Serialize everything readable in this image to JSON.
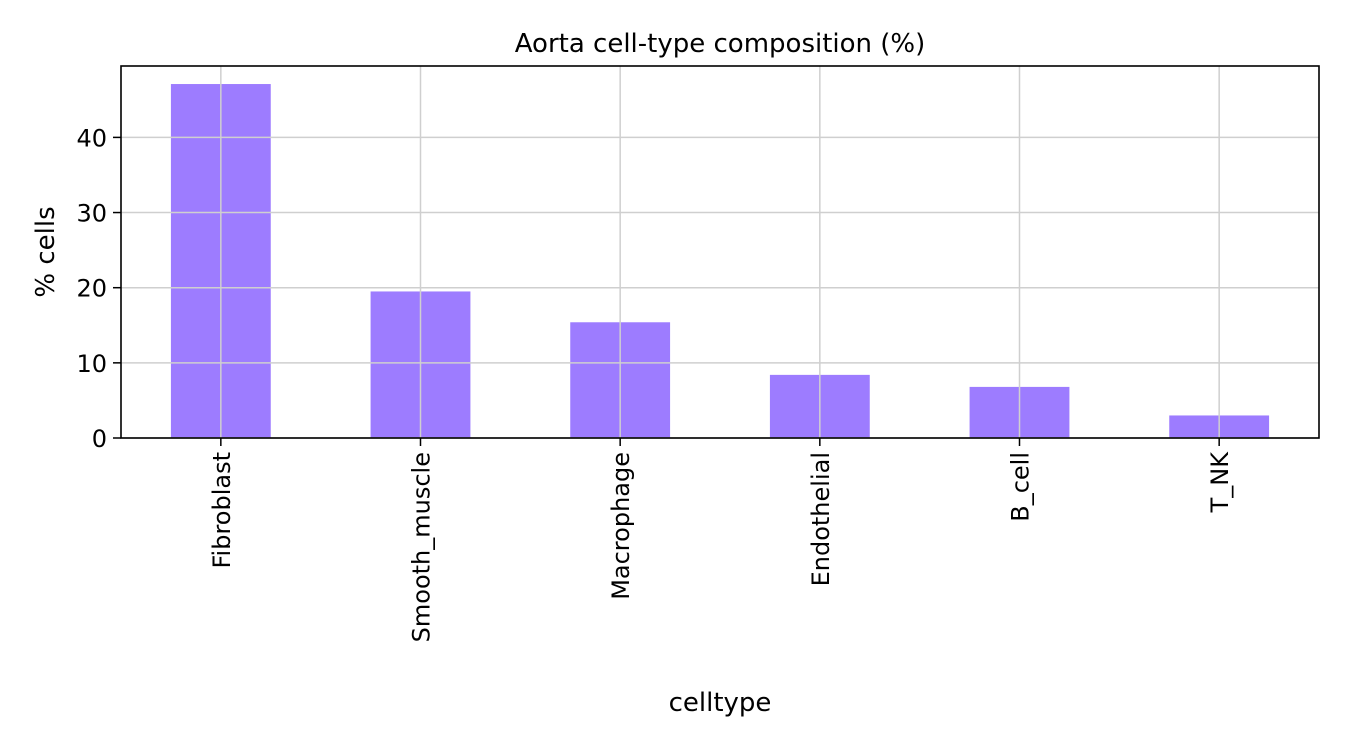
{
  "chart_data": {
    "type": "bar",
    "title": "Aorta cell-type composition (%)",
    "xlabel": "celltype",
    "ylabel": "% cells",
    "categories": [
      "Fibroblast",
      "Smooth_muscle",
      "Macrophage",
      "Endothelial",
      "B_cell",
      "T_NK"
    ],
    "values": [
      47.1,
      19.5,
      15.4,
      8.4,
      6.8,
      3.0
    ],
    "yticks": [
      0,
      10,
      20,
      30,
      40
    ],
    "ylim": [
      0,
      49.5
    ],
    "grid": true,
    "bar_color": "#9d7cff"
  }
}
